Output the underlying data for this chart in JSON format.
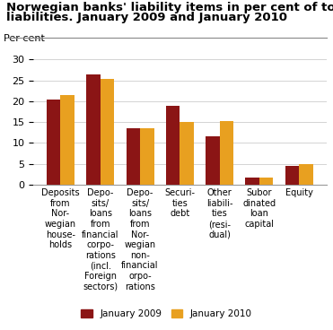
{
  "title_line1": "Norwegian banks' liability items in per cent of total",
  "title_line2": "liabilities. January 2009 and January 2010",
  "ylabel_text": "Per cent",
  "categories": [
    "Deposits\nfrom\nNor-\nwegian\nhouse-\nholds",
    "Depo-\nsits/\nloans\nfrom\nfinancial\ncorpo-\nrations\n(incl.\nForeign\nsectors)",
    "Depo-\nsits/\nloans\nfrom\nNor-\nwegian\nnon-\nfinancial\norpo-\nrations",
    "Securi-\nties\ndebt",
    "Other\nliabili-\nties\n(resi-\ndual)",
    "Subor\ndinated\nloan\ncapital",
    "Equity"
  ],
  "jan2009": [
    20.3,
    26.3,
    13.6,
    19.0,
    11.7,
    1.8,
    4.6
  ],
  "jan2010": [
    21.4,
    25.3,
    13.5,
    15.0,
    15.2,
    1.7,
    5.0
  ],
  "color_2009": "#8B1515",
  "color_2010": "#E8A020",
  "ylim": [
    0,
    30
  ],
  "yticks": [
    0,
    5,
    10,
    15,
    20,
    25,
    30
  ],
  "legend_2009": "January 2009",
  "legend_2010": "January 2010",
  "title_fontsize": 9.5,
  "label_fontsize": 7,
  "tick_fontsize": 8,
  "bar_width": 0.35
}
